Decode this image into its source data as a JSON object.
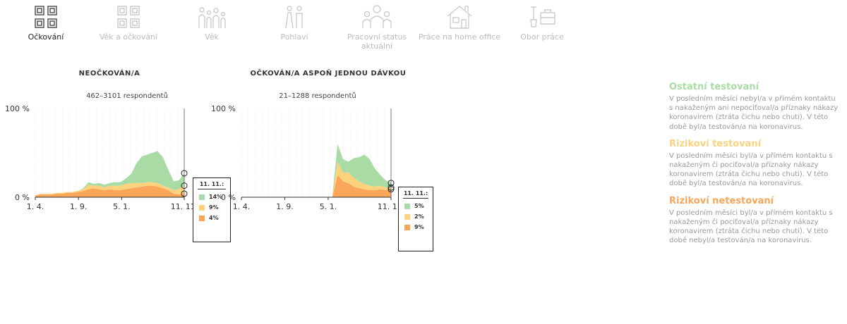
{
  "tabs": [
    {
      "label": "Očkování",
      "active": true,
      "icon": "grid-icon"
    },
    {
      "label": "Věk a očkování",
      "active": false,
      "icon": "grid-icon"
    },
    {
      "label": "Věk",
      "active": false,
      "icon": "people-icon"
    },
    {
      "label": "Pohlaví",
      "active": false,
      "icon": "gender-icon"
    },
    {
      "label": "Pracovní status aktuální",
      "active": false,
      "icon": "workers-icon"
    },
    {
      "label": "Práce na home office",
      "active": false,
      "icon": "house-icon"
    },
    {
      "label": "Obor práce",
      "active": false,
      "icon": "tools-icon"
    }
  ],
  "colors": {
    "green": "#a8dca4",
    "yellow": "#fcd27e",
    "orange": "#f9a55a",
    "grid": "#dddddd"
  },
  "chart_data": [
    {
      "type": "area",
      "title": "NEOČKOVÁN/A",
      "subtitle": "462–3101 respondentů",
      "x_ticks": [
        "1. 4.",
        "1. 9.",
        "5. 1.",
        "11. 11."
      ],
      "y_ticks": [
        "0 %",
        "100 %"
      ],
      "ylim": [
        0,
        100
      ],
      "stacked": true,
      "legend": {
        "date": "11. 11.:",
        "values": [
          "14%",
          "9%",
          "4%"
        ]
      },
      "series": [
        {
          "name": "Rizikoví netestovaní",
          "color": "orange",
          "values": [
            2,
            3,
            3,
            3,
            4,
            4,
            5,
            5,
            6,
            7,
            9,
            10,
            9,
            8,
            9,
            8,
            8,
            9,
            10,
            11,
            12,
            13,
            13,
            12,
            10,
            8,
            4,
            3,
            4
          ]
        },
        {
          "name": "Rizikoví testovaní",
          "color": "yellow",
          "values": [
            0,
            1,
            1,
            1,
            1,
            1,
            1,
            1,
            1,
            2,
            5,
            3,
            4,
            3,
            4,
            5,
            5,
            6,
            6,
            5,
            4,
            4,
            4,
            4,
            3,
            3,
            4,
            6,
            9
          ]
        },
        {
          "name": "Ostatní testovaní",
          "color": "green",
          "values": [
            0,
            0,
            0,
            0,
            0,
            0,
            0,
            0,
            0,
            1,
            3,
            2,
            3,
            3,
            3,
            4,
            4,
            6,
            10,
            22,
            30,
            31,
            33,
            36,
            32,
            20,
            10,
            10,
            14
          ]
        }
      ]
    },
    {
      "type": "area",
      "title": "OČKOVÁN/A ASPOŇ JEDNOU DÁVKOU",
      "subtitle": "21–1288 respondentů",
      "x_ticks": [
        "1. 4.",
        "1. 9.",
        "5. 1.",
        "11. 11."
      ],
      "y_ticks": [
        "0 %",
        "100 %"
      ],
      "ylim": [
        0,
        100
      ],
      "stacked": true,
      "legend": {
        "date": "11. 11.:",
        "values": [
          "5%",
          "2%",
          "9%"
        ]
      },
      "series": [
        {
          "name": "Rizikoví netestovaní",
          "color": "orange",
          "values": [
            0,
            0,
            0,
            0,
            0,
            0,
            0,
            0,
            0,
            0,
            0,
            0,
            0,
            0,
            0,
            0,
            0,
            0,
            25,
            18,
            16,
            12,
            10,
            9,
            8,
            8,
            9,
            8,
            9
          ]
        },
        {
          "name": "Rizikoví testovaní",
          "color": "yellow",
          "values": [
            0,
            0,
            0,
            0,
            0,
            0,
            0,
            0,
            0,
            0,
            0,
            0,
            0,
            0,
            0,
            0,
            0,
            0,
            15,
            10,
            12,
            10,
            8,
            6,
            5,
            4,
            4,
            3,
            2
          ]
        },
        {
          "name": "Ostatní testovaní",
          "color": "green",
          "values": [
            0,
            0,
            0,
            0,
            0,
            0,
            0,
            0,
            0,
            0,
            0,
            0,
            0,
            0,
            0,
            0,
            0,
            0,
            20,
            15,
            12,
            22,
            27,
            33,
            30,
            20,
            12,
            8,
            5
          ]
        }
      ]
    }
  ],
  "side": [
    {
      "title": "Ostatní testovaní",
      "color": "#a8dca4",
      "text": "V posledním měsíci nebyl/a v přímém kontaktu s nakaženým ani nepociťoval/a příznaky nákazy koronavirem (ztráta čichu nebo chuti). V této době byl/a testován/a na koronavirus."
    },
    {
      "title": "Rizikoví testovaní",
      "color": "#fcd27e",
      "text": "V posledním měsíci byl/a v přímém kontaktu s nakaženým či pociťoval/a příznaky nákazy koronavirem (ztráta čichu nebo chuti). V této době byl/a testován/a na koronavirus."
    },
    {
      "title": "Rizikoví netestovaní",
      "color": "#f9a55a",
      "text": "V posledním měsíci byl/a v přímém kontaktu s nakaženým či pociťoval/a příznaky nákazy koronavirem (ztráta čichu nebo chuti). V této době nebyl/a testován/a na koronavirus."
    }
  ]
}
